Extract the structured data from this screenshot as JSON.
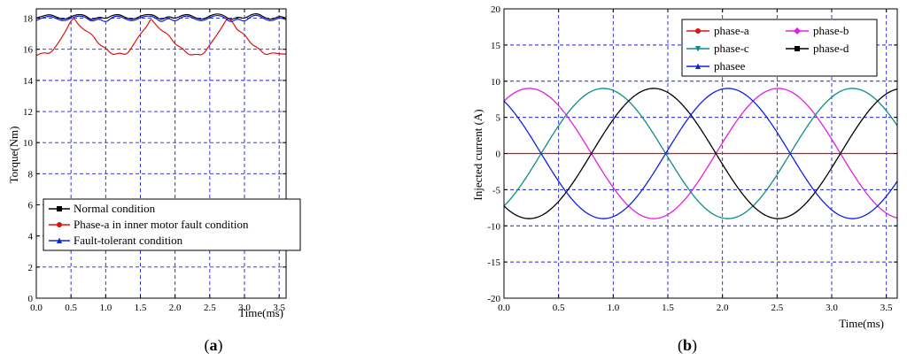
{
  "chart_data": [
    {
      "type": "line",
      "xlabel": "Time(ms)",
      "ylabel": "Torque(Nm)",
      "caption": "(a)",
      "caption_letter": "a",
      "xlim": [
        0,
        3.6
      ],
      "ylim": [
        0,
        18.6
      ],
      "x_ticks": [
        "0.0",
        "0.5",
        "1.0",
        "1.5",
        "2.0",
        "2.5",
        "3.0",
        "3.5"
      ],
      "x_tick_values": [
        0,
        0.5,
        1.0,
        1.5,
        2.0,
        2.5,
        3.0,
        3.5
      ],
      "y_ticks": [
        "0",
        "2",
        "4",
        "6",
        "8",
        "10",
        "12",
        "14",
        "16",
        "18"
      ],
      "y_tick_values": [
        0,
        2,
        4,
        6,
        8,
        10,
        12,
        14,
        16,
        18
      ],
      "grid": true,
      "legend_position": "bottom-left",
      "series": [
        {
          "name": "Normal condition",
          "color": "#000000",
          "marker": "square",
          "x": [
            0,
            0.1,
            0.2,
            0.3,
            0.4,
            0.5,
            0.6,
            0.7,
            0.8,
            0.9,
            1.0,
            1.1,
            1.2,
            1.3,
            1.4,
            1.5,
            1.6,
            1.7,
            1.8,
            1.9,
            2.0,
            2.1,
            2.2,
            2.3,
            2.4,
            2.5,
            2.6,
            2.7,
            2.8,
            2.9,
            3.0,
            3.1,
            3.2,
            3.3,
            3.4,
            3.5,
            3.6
          ],
          "values": [
            18.0,
            18.15,
            18.25,
            18.05,
            17.9,
            18.1,
            18.25,
            18.2,
            17.85,
            18.1,
            17.95,
            18.2,
            18.25,
            18.0,
            17.9,
            18.15,
            18.25,
            18.2,
            17.85,
            18.15,
            17.95,
            18.2,
            18.25,
            18.0,
            17.9,
            18.15,
            18.3,
            18.2,
            17.85,
            18.1,
            17.95,
            18.25,
            18.3,
            18.0,
            17.9,
            18.15,
            18.0
          ]
        },
        {
          "name": "Phase-a in inner motor fault condition",
          "color": "#e01010",
          "marker": "circle",
          "x": [
            0,
            0.1,
            0.2,
            0.3,
            0.4,
            0.45,
            0.5,
            0.55,
            0.6,
            0.7,
            0.8,
            0.9,
            1.0,
            1.1,
            1.2,
            1.3,
            1.4,
            1.5,
            1.6,
            1.65,
            1.7,
            1.8,
            1.9,
            2.0,
            2.1,
            2.2,
            2.3,
            2.4,
            2.5,
            2.6,
            2.7,
            2.75,
            2.8,
            2.85,
            2.9,
            3.0,
            3.1,
            3.2,
            3.3,
            3.4,
            3.5,
            3.6
          ],
          "values": [
            15.6,
            15.8,
            15.7,
            16.3,
            17.0,
            17.4,
            17.85,
            18.0,
            17.6,
            17.2,
            17.0,
            16.3,
            16.1,
            15.6,
            15.8,
            15.6,
            16.3,
            17.0,
            17.5,
            18.0,
            17.7,
            17.2,
            17.0,
            16.3,
            16.1,
            15.6,
            15.7,
            15.6,
            16.3,
            16.9,
            17.6,
            18.0,
            17.9,
            17.6,
            17.2,
            17.0,
            16.3,
            16.1,
            15.6,
            15.8,
            15.7,
            15.7
          ]
        },
        {
          "name": "Fault-tolerant condition",
          "color": "#1020e0",
          "marker": "triangle",
          "x": [
            0,
            0.1,
            0.2,
            0.3,
            0.4,
            0.5,
            0.6,
            0.7,
            0.8,
            0.9,
            1.0,
            1.1,
            1.2,
            1.3,
            1.4,
            1.5,
            1.6,
            1.7,
            1.8,
            1.9,
            2.0,
            2.1,
            2.2,
            2.3,
            2.4,
            2.5,
            2.6,
            2.7,
            2.8,
            2.9,
            3.0,
            3.1,
            3.2,
            3.3,
            3.4,
            3.5,
            3.6
          ],
          "values": [
            17.85,
            18.05,
            18.15,
            17.95,
            17.8,
            18.0,
            18.15,
            18.1,
            17.75,
            18.0,
            17.7,
            18.1,
            18.15,
            17.9,
            17.8,
            18.05,
            18.15,
            18.1,
            17.7,
            18.05,
            17.75,
            18.1,
            18.15,
            17.9,
            17.8,
            18.05,
            18.2,
            18.1,
            17.7,
            18.0,
            17.75,
            18.15,
            18.2,
            17.9,
            17.8,
            18.05,
            17.9
          ]
        }
      ]
    },
    {
      "type": "line",
      "xlabel": "Time(ms)",
      "ylabel": "Injected current (A)",
      "caption": "(b)",
      "caption_letter": "b",
      "xlim": [
        0,
        3.6
      ],
      "ylim": [
        -20,
        20
      ],
      "x_ticks": [
        "0.0",
        "0.5",
        "1.0",
        "1.5",
        "2.0",
        "2.5",
        "3.0",
        "3.5"
      ],
      "x_tick_values": [
        0,
        0.5,
        1.0,
        1.5,
        2.0,
        2.5,
        3.0,
        3.5
      ],
      "y_ticks": [
        "-20",
        "-15",
        "-10",
        "-5",
        "0",
        "5",
        "10",
        "15",
        "20"
      ],
      "y_tick_values": [
        -20,
        -15,
        -10,
        -5,
        0,
        5,
        10,
        15,
        20
      ],
      "grid": true,
      "legend_position": "top-right",
      "amplitude": 9.0,
      "period_ms": 2.28,
      "series": [
        {
          "name": "phase-a",
          "color": "#e01010",
          "marker": "circle",
          "peak_time_ms": null
        },
        {
          "name": "phase-b",
          "color": "#e020e0",
          "marker": "diamond",
          "peak_time_ms": 0.23
        },
        {
          "name": "phase-c",
          "color": "#108a8a",
          "marker": "triangle-down",
          "peak_time_ms": 0.91
        },
        {
          "name": "phase-d",
          "color": "#000000",
          "marker": "square",
          "peak_time_ms": 1.37
        },
        {
          "name": "phasee",
          "color": "#1020e0",
          "marker": "triangle",
          "peak_time_ms": 2.05
        }
      ]
    }
  ]
}
